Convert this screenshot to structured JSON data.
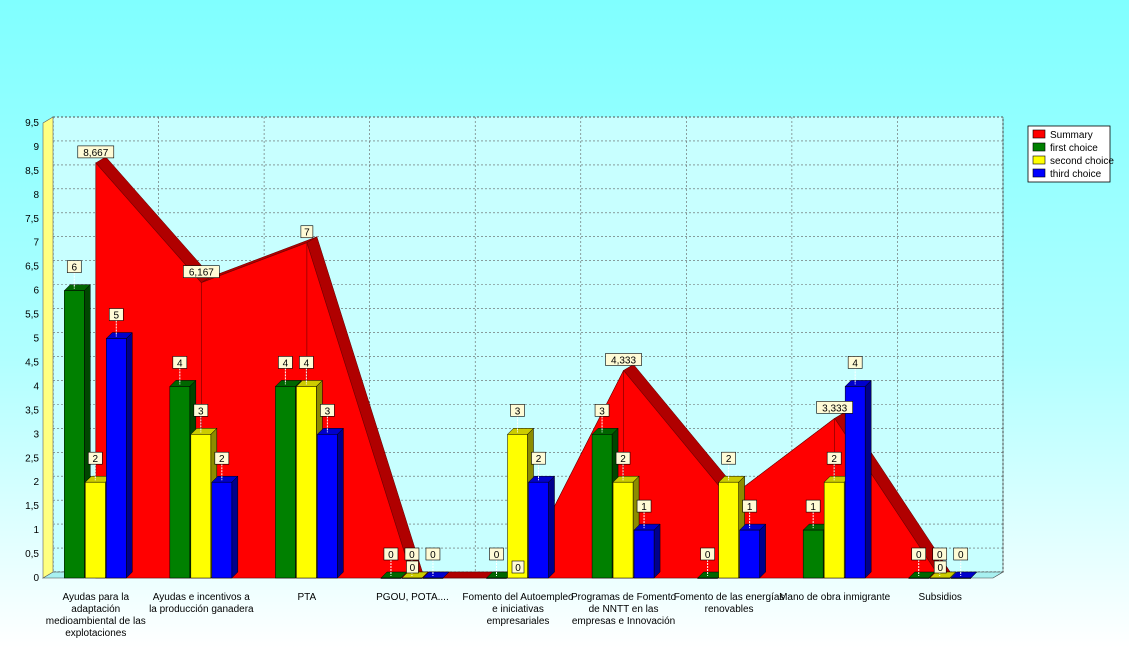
{
  "chart_data": {
    "type": "bar",
    "title": "",
    "xlabel": "",
    "ylabel": "",
    "ylim": [
      0,
      9.5
    ],
    "yticks": [
      "0",
      "0,5",
      "1",
      "1,5",
      "2",
      "2,5",
      "3",
      "3,5",
      "4",
      "4,5",
      "5",
      "5,5",
      "6",
      "6,5",
      "7",
      "7,5",
      "8",
      "8,5",
      "9",
      "9,5"
    ],
    "grid": true,
    "legend_position": "top-right",
    "categories": [
      [
        "Ayudas para la",
        "adaptación",
        "medioambiental de las",
        "explotaciones"
      ],
      [
        "Ayudas e incentivos a",
        "la producción ganadera"
      ],
      [
        "PTA"
      ],
      [
        "PGOU, POTA...."
      ],
      [
        "Fomento del Autoempleo",
        "e iniciativas",
        "empresariales"
      ],
      [
        "Programas de Fomento",
        "de NNTT en las",
        "empresas e Innovación"
      ],
      [
        "Fomento de las energías",
        "renovables"
      ],
      [
        "Mano de obra inmigrante"
      ],
      [
        "Subsidios"
      ]
    ],
    "series": [
      {
        "name": "Summary",
        "type": "area",
        "color": "#ff0000",
        "values": [
          8.667,
          6.167,
          7,
          0,
          0,
          4.333,
          1.667,
          3.333,
          0
        ],
        "labels": [
          "8,667",
          "6,167",
          "7",
          "0",
          "0",
          "4,333",
          "",
          "3,333",
          "0"
        ]
      },
      {
        "name": "first choice",
        "color": "#008000",
        "values": [
          6,
          4,
          4,
          0,
          0,
          3,
          0,
          1,
          0
        ]
      },
      {
        "name": "second choice",
        "color": "#ffff00",
        "values": [
          2,
          3,
          4,
          0,
          3,
          2,
          2,
          2,
          0
        ]
      },
      {
        "name": "third choice",
        "color": "#0000ff",
        "values": [
          5,
          2,
          3,
          0,
          2,
          1,
          1,
          4,
          0
        ]
      }
    ]
  }
}
